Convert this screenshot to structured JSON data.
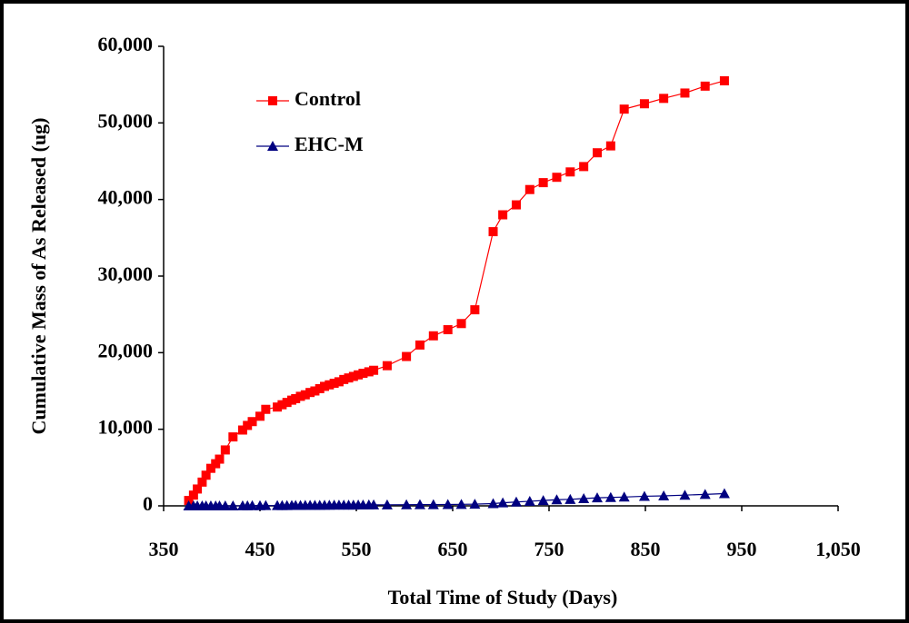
{
  "chart_data": {
    "type": "line",
    "xlabel": "Total Time of Study (Days)",
    "ylabel": "Cumulative Mass of As Released (ug)",
    "x": [
      376,
      381,
      385,
      390,
      394,
      399,
      404,
      408,
      414,
      422,
      432,
      437,
      442,
      450,
      456,
      468,
      473,
      478,
      483,
      487,
      492,
      497,
      502,
      507,
      512,
      517,
      522,
      527,
      532,
      537,
      542,
      547,
      552,
      557,
      563,
      568,
      582,
      602,
      616,
      630,
      645,
      659,
      673,
      692,
      702,
      716,
      730,
      744,
      758,
      772,
      786,
      800,
      814,
      828,
      849,
      869,
      891,
      912,
      932
    ],
    "series": [
      {
        "name": "Control",
        "color": "#ff0000",
        "marker": "square",
        "values": [
          700,
          1400,
          2200,
          3100,
          4000,
          4900,
          5500,
          6100,
          7300,
          9000,
          9900,
          10500,
          11000,
          11700,
          12600,
          12900,
          13200,
          13500,
          13800,
          14000,
          14300,
          14500,
          14800,
          15000,
          15300,
          15600,
          15800,
          16000,
          16200,
          16500,
          16700,
          16900,
          17100,
          17300,
          17500,
          17700,
          18300,
          19500,
          21000,
          22200,
          23000,
          23800,
          25600,
          35800,
          38000,
          39300,
          41300,
          42200,
          42900,
          43600,
          44300,
          46100,
          47000,
          51800,
          52500,
          53200,
          53900,
          54800,
          55500
        ]
      },
      {
        "name": "EHC-M",
        "color": "#000080",
        "marker": "triangle",
        "values": [
          0,
          0,
          0,
          0,
          0,
          0,
          0,
          0,
          0,
          0,
          20,
          20,
          30,
          30,
          40,
          40,
          50,
          50,
          60,
          60,
          60,
          70,
          70,
          80,
          80,
          90,
          90,
          100,
          100,
          100,
          110,
          110,
          120,
          120,
          130,
          130,
          140,
          150,
          160,
          170,
          180,
          200,
          220,
          300,
          400,
          500,
          600,
          700,
          800,
          850,
          950,
          1050,
          1100,
          1150,
          1250,
          1300,
          1400,
          1500,
          1600
        ]
      }
    ],
    "xlim": [
      350,
      1050
    ],
    "xticks": [
      350,
      450,
      550,
      650,
      750,
      850,
      950,
      {
        "value": 1050,
        "label": "1,050"
      }
    ],
    "ylim": [
      0,
      60000
    ],
    "yticks": [
      0,
      {
        "value": 10000,
        "label": "10,000"
      },
      {
        "value": 20000,
        "label": "20,000"
      },
      {
        "value": 30000,
        "label": "30,000"
      },
      {
        "value": 40000,
        "label": "40,000"
      },
      {
        "value": 50000,
        "label": "50,000"
      },
      {
        "value": 60000,
        "label": "60,000"
      }
    ],
    "legend": "upper left"
  }
}
